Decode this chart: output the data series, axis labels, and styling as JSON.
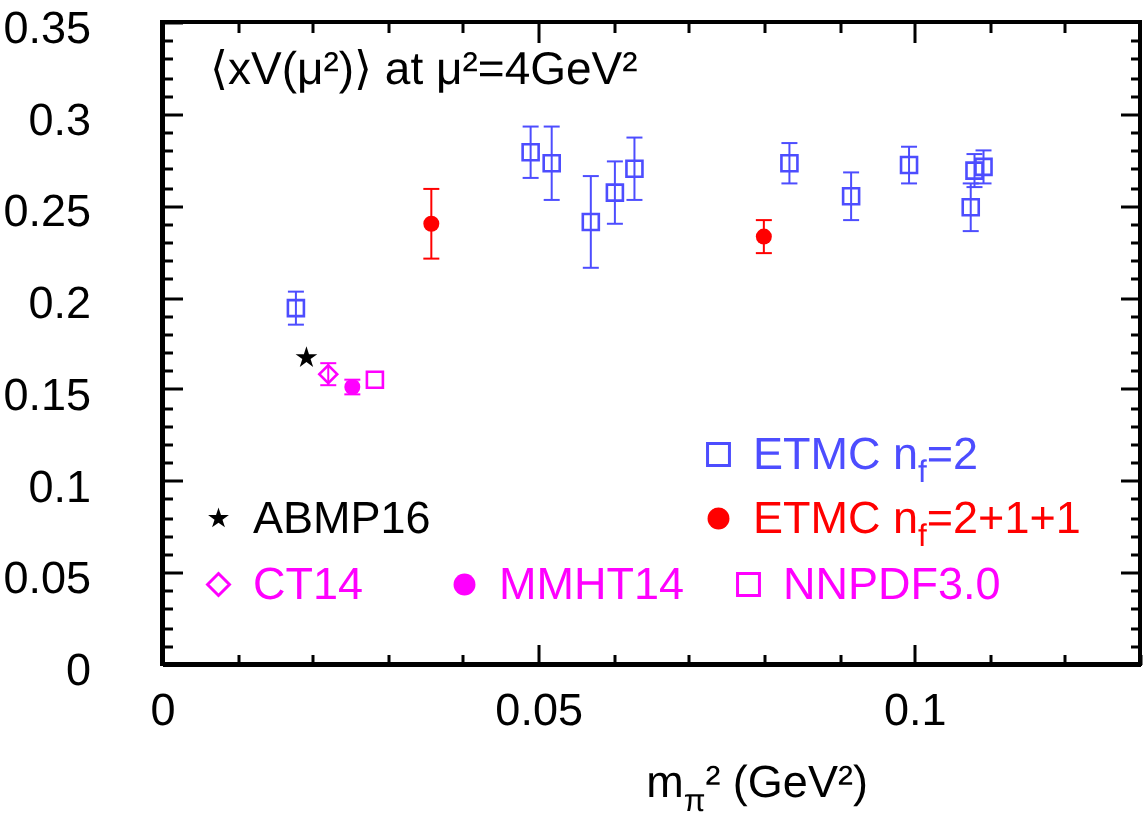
{
  "chart_data": {
    "type": "scatter",
    "title": "⟨xV(μ²)⟩ at μ²=4GeV²",
    "xlabel": "m$_{π}$² (GeV²)",
    "xlim": [
      0,
      0.13
    ],
    "ylim": [
      0,
      0.35
    ],
    "xticks": [
      0,
      {
        "value": 0.01,
        "label": null
      },
      {
        "value": 0.02,
        "label": null
      },
      {
        "value": 0.03,
        "label": null
      },
      {
        "value": 0.04,
        "label": null
      },
      0.05,
      {
        "value": 0.06,
        "label": null
      },
      {
        "value": 0.07,
        "label": null
      },
      {
        "value": 0.08,
        "label": null
      },
      {
        "value": 0.09,
        "label": null
      },
      0.1,
      {
        "value": 0.11,
        "label": null
      },
      {
        "value": 0.12,
        "label": null
      },
      {
        "value": 0.13,
        "label": null
      }
    ],
    "yticks": [
      0,
      {
        "value": 0.01,
        "label": null
      },
      {
        "value": 0.02,
        "label": null
      },
      {
        "value": 0.03,
        "label": null
      },
      {
        "value": 0.04,
        "label": null
      },
      0.05,
      {
        "value": 0.06,
        "label": null
      },
      {
        "value": 0.07,
        "label": null
      },
      {
        "value": 0.08,
        "label": null
      },
      {
        "value": 0.09,
        "label": null
      },
      0.1,
      {
        "value": 0.11,
        "label": null
      },
      {
        "value": 0.12,
        "label": null
      },
      {
        "value": 0.13,
        "label": null
      },
      {
        "value": 0.14,
        "label": null
      },
      0.15,
      {
        "value": 0.16,
        "label": null
      },
      {
        "value": 0.17,
        "label": null
      },
      {
        "value": 0.18,
        "label": null
      },
      {
        "value": 0.19,
        "label": null
      },
      0.2,
      {
        "value": 0.21,
        "label": null
      },
      {
        "value": 0.22,
        "label": null
      },
      {
        "value": 0.23,
        "label": null
      },
      {
        "value": 0.24,
        "label": null
      },
      0.25,
      {
        "value": 0.26,
        "label": null
      },
      {
        "value": 0.27,
        "label": null
      },
      {
        "value": 0.28,
        "label": null
      },
      {
        "value": 0.29,
        "label": null
      },
      0.3,
      {
        "value": 0.31,
        "label": null
      },
      {
        "value": 0.32,
        "label": null
      },
      {
        "value": 0.33,
        "label": null
      },
      {
        "value": 0.34,
        "label": null
      },
      0.35
    ],
    "grid": false,
    "legend": "bottom",
    "series": [
      {
        "name": "ETMC n$_{f}$=2",
        "color": "#4d4dff",
        "marker": "square",
        "x": [
          0.0178,
          0.049,
          0.0518,
          0.057,
          0.0602,
          0.0628,
          0.0834,
          0.0916,
          0.0993,
          0.1075,
          0.108,
          0.1092
        ],
        "values": [
          0.194,
          0.279,
          0.273,
          0.241,
          0.257,
          0.27,
          0.273,
          0.255,
          0.272,
          0.249,
          0.269,
          0.271
        ],
        "errors": [
          0.009,
          0.014,
          0.02,
          0.025,
          0.017,
          0.017,
          0.011,
          0.013,
          0.01,
          0.013,
          0.009,
          0.009
        ]
      },
      {
        "name": "ETMC n$_{f}$=2+1+1",
        "color": "#ff0000",
        "marker": "circle",
        "x": [
          0.0358,
          0.08
        ],
        "values": [
          0.24,
          0.233
        ],
        "errors": [
          0.019,
          0.009
        ]
      },
      {
        "name": "ABMP16",
        "color": "#000000",
        "marker": "star",
        "x": [
          0.0192
        ],
        "values": [
          0.167
        ]
      },
      {
        "name": "CT14",
        "color": "#ff00ff",
        "marker": "diamond",
        "x": [
          0.0221
        ],
        "values": [
          0.158
        ],
        "errors": [
          0.006
        ]
      },
      {
        "name": "MMHT14",
        "color": "#ff00ff",
        "marker": "circle",
        "x": [
          0.0253
        ],
        "values": [
          0.151
        ],
        "errors": [
          0.004
        ]
      },
      {
        "name": "NNPDF3.0",
        "color": "#ff00ff",
        "marker": "square",
        "x": [
          0.0283
        ],
        "values": [
          0.155
        ]
      }
    ]
  }
}
